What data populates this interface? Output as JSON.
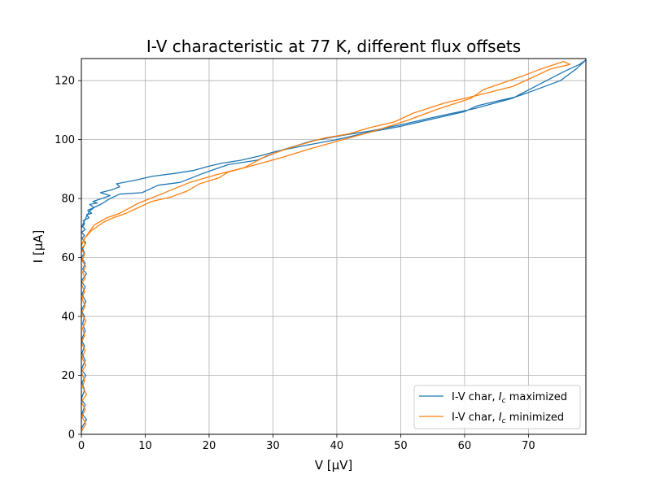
{
  "chart_data": {
    "type": "line",
    "title": "I-V characteristic at 77 K, different flux offsets",
    "xlabel": "V [μV]",
    "ylabel": "I [μA]",
    "xlim": [
      0,
      79
    ],
    "ylim": [
      0,
      127.5
    ],
    "xticks": [
      0,
      10,
      20,
      30,
      40,
      50,
      60,
      70
    ],
    "yticks": [
      0,
      20,
      40,
      60,
      80,
      100,
      120
    ],
    "xtick_labels": [
      "0",
      "10",
      "20",
      "30",
      "40",
      "50",
      "60",
      "70"
    ],
    "ytick_labels": [
      "0",
      "20",
      "40",
      "60",
      "80",
      "100",
      "120"
    ],
    "grid": true,
    "legend_position": "lower-right",
    "series": [
      {
        "name": "I-V char, I_c maximized",
        "legend_prefix": "I-V char, ",
        "legend_math_main": "I",
        "legend_math_sub": "c",
        "legend_suffix": " maximized",
        "color": "#1f77b4",
        "x": [
          0.0,
          0.8,
          0.1,
          0.6,
          0.0,
          0.5,
          0.1,
          0.7,
          0.0,
          0.6,
          0.1,
          0.5,
          0.0,
          0.6,
          0.2,
          0.5,
          0.0,
          0.7,
          0.1,
          0.6,
          0.0,
          0.8,
          0.2,
          0.6,
          0.0,
          0.5,
          0.2,
          0.7,
          0.1,
          0.5,
          0.0,
          0.6,
          0.2,
          0.5,
          0.3,
          1.2,
          0.8,
          1.6,
          1.0,
          2.0,
          1.3,
          2.5,
          1.8,
          3.2,
          4.5,
          3.0,
          4.8,
          6.0,
          5.5,
          9.0,
          11.0,
          14.5,
          17.5,
          20.0,
          22.0,
          25.0,
          28.0,
          30.5,
          35.0,
          40.0,
          45.0,
          50.0,
          55.0,
          60.0,
          62.0,
          65.0,
          68.0,
          70.0,
          75.0,
          77.5,
          79.0,
          78.0,
          75.5,
          71.5,
          67.5,
          61.5,
          56.0,
          51.0,
          45.5,
          41.0,
          36.0,
          31.5,
          27.5,
          23.0,
          19.0,
          15.5,
          12.0,
          9.5,
          6.0,
          4.5,
          3.0,
          2.0,
          1.2,
          0.6,
          0.0
        ],
        "y": [
          2.0,
          5.0,
          7.0,
          10.0,
          12.0,
          15.0,
          17.5,
          20.0,
          22.0,
          25.0,
          27.5,
          30.0,
          32.0,
          35.0,
          37.5,
          40.0,
          42.0,
          45.0,
          47.5,
          50.0,
          52.0,
          54.5,
          56.0,
          58.0,
          60.0,
          61.5,
          63.0,
          65.0,
          66.5,
          67.5,
          68.5,
          69.5,
          70.5,
          71.5,
          72.5,
          73.5,
          74.5,
          75.0,
          76.0,
          77.0,
          78.0,
          78.5,
          79.0,
          80.0,
          81.0,
          82.0,
          83.0,
          84.0,
          85.0,
          86.5,
          87.5,
          88.5,
          89.5,
          91.0,
          92.0,
          93.0,
          94.5,
          96.0,
          98.0,
          100.0,
          102.5,
          104.5,
          107.0,
          109.5,
          111.5,
          113.0,
          114.5,
          116.0,
          120.0,
          124.0,
          127.0,
          125.5,
          123.0,
          118.5,
          114.0,
          110.5,
          108.0,
          105.5,
          103.0,
          101.5,
          99.5,
          96.5,
          93.0,
          91.5,
          88.5,
          85.5,
          84.5,
          82.0,
          81.5,
          80.0,
          78.0,
          77.0,
          75.5,
          73.0,
          70.0
        ]
      },
      {
        "name": "I-V char, I_c minimized",
        "legend_prefix": "I-V char, ",
        "legend_math_main": "I",
        "legend_math_sub": "c",
        "legend_suffix": " minimized",
        "color": "#ff7f0e",
        "x": [
          0.0,
          0.7,
          0.1,
          0.6,
          0.0,
          0.8,
          0.2,
          0.5,
          0.0,
          0.7,
          0.1,
          0.6,
          0.0,
          0.5,
          0.2,
          0.7,
          0.0,
          0.6,
          0.1,
          0.5,
          0.0,
          0.6,
          0.2,
          0.7,
          0.1,
          0.5,
          0.0,
          0.6,
          0.3,
          0.9,
          1.5,
          2.5,
          3.5,
          5.0,
          7.0,
          9.0,
          11.0,
          14.0,
          16.5,
          18.5,
          21.5,
          23.0,
          26.5,
          31.5,
          36.0,
          41.0,
          46.0,
          51.0,
          56.0,
          61.0,
          63.0,
          67.0,
          69.0,
          72.0,
          75.5,
          76.5,
          73.5,
          70.5,
          67.5,
          62.0,
          57.0,
          52.0,
          49.0,
          45.0,
          42.0,
          38.0,
          33.0,
          29.0,
          25.5,
          21.0,
          17.0,
          12.5,
          9.0,
          6.0,
          4.0,
          2.0,
          1.0,
          0.4,
          0.0
        ],
        "y": [
          1.0,
          3.5,
          6.0,
          8.5,
          11.0,
          13.5,
          16.0,
          18.5,
          21.0,
          23.5,
          26.0,
          28.5,
          31.0,
          33.5,
          36.0,
          38.5,
          41.0,
          43.5,
          46.0,
          48.5,
          51.0,
          53.0,
          55.0,
          57.0,
          59.0,
          61.0,
          63.0,
          64.5,
          66.0,
          67.5,
          69.0,
          70.5,
          72.0,
          73.5,
          75.0,
          77.0,
          79.0,
          80.5,
          82.5,
          85.0,
          87.0,
          89.0,
          91.0,
          94.0,
          97.0,
          100.0,
          103.0,
          106.5,
          110.5,
          114.0,
          117.0,
          120.0,
          121.5,
          124.0,
          126.5,
          125.5,
          124.0,
          121.0,
          118.0,
          115.0,
          112.5,
          109.0,
          106.0,
          104.0,
          102.0,
          100.5,
          97.5,
          94.5,
          90.5,
          88.0,
          85.5,
          81.5,
          78.5,
          75.0,
          73.5,
          71.0,
          68.0,
          66.0,
          64.0
        ]
      }
    ]
  }
}
